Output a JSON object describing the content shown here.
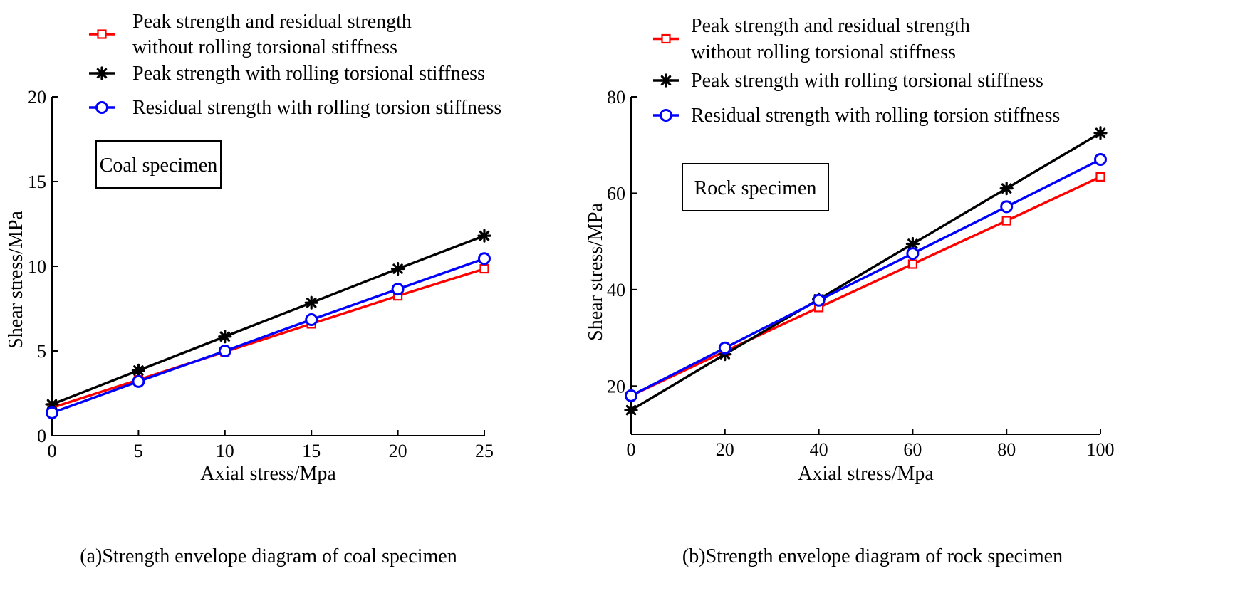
{
  "chart_data": [
    {
      "type": "line",
      "panel_id": "coal",
      "caption": "(a)Strength envelope diagram of coal specimen",
      "annotation": "Coal specimen",
      "xlabel": "Axial stress/Mpa",
      "ylabel": "Shear stress/MPa",
      "xlim": [
        0,
        25
      ],
      "ylim": [
        0,
        20
      ],
      "xticks": [
        0,
        5,
        10,
        15,
        20,
        25
      ],
      "yticks": [
        0,
        5,
        10,
        15,
        20
      ],
      "x": [
        0,
        5,
        10,
        15,
        20,
        25
      ],
      "series": [
        {
          "key": "red",
          "name_lines": [
            "Peak strength and residual strength",
            "without rolling torsional stiffness"
          ],
          "color": "#ff0000",
          "marker": "square",
          "values": [
            1.65,
            3.3,
            4.95,
            6.6,
            8.25,
            9.85
          ]
        },
        {
          "key": "black",
          "name_lines": [
            "Peak strength  with rolling torsional stiffness"
          ],
          "color": "#000000",
          "marker": "star",
          "values": [
            1.85,
            3.85,
            5.85,
            7.85,
            9.85,
            11.8
          ]
        },
        {
          "key": "blue",
          "name_lines": [
            "Residual strength  with rolling torsion stiffness"
          ],
          "color": "#0000ff",
          "marker": "circle",
          "values": [
            1.35,
            3.2,
            5.0,
            6.85,
            8.65,
            10.45
          ]
        }
      ]
    },
    {
      "type": "line",
      "panel_id": "rock",
      "caption": "(b)Strength envelope diagram of rock specimen",
      "annotation": "Rock specimen",
      "xlabel": "Axial stress/Mpa",
      "ylabel": "Shear stress/MPa",
      "xlim": [
        0,
        100
      ],
      "ylim": [
        10,
        80
      ],
      "xticks": [
        0,
        20,
        40,
        60,
        80,
        100
      ],
      "yticks": [
        20,
        40,
        60,
        80
      ],
      "x": [
        0,
        20,
        40,
        60,
        80,
        100
      ],
      "series": [
        {
          "key": "red",
          "name_lines": [
            "Peak strength and residual strength",
            "without rolling torsional stiffness"
          ],
          "color": "#ff0000",
          "marker": "square",
          "values": [
            18.0,
            27.2,
            36.3,
            45.3,
            54.3,
            63.4
          ]
        },
        {
          "key": "black",
          "name_lines": [
            "Peak strength  with rolling torsional stiffness"
          ],
          "color": "#000000",
          "marker": "star",
          "values": [
            15.0,
            26.6,
            38.0,
            49.5,
            61.0,
            72.5
          ]
        },
        {
          "key": "blue",
          "name_lines": [
            "Residual strength  with rolling torsion stiffness"
          ],
          "color": "#0000ff",
          "marker": "circle",
          "values": [
            18.0,
            27.9,
            37.8,
            47.5,
            57.2,
            67.0
          ]
        }
      ]
    }
  ]
}
